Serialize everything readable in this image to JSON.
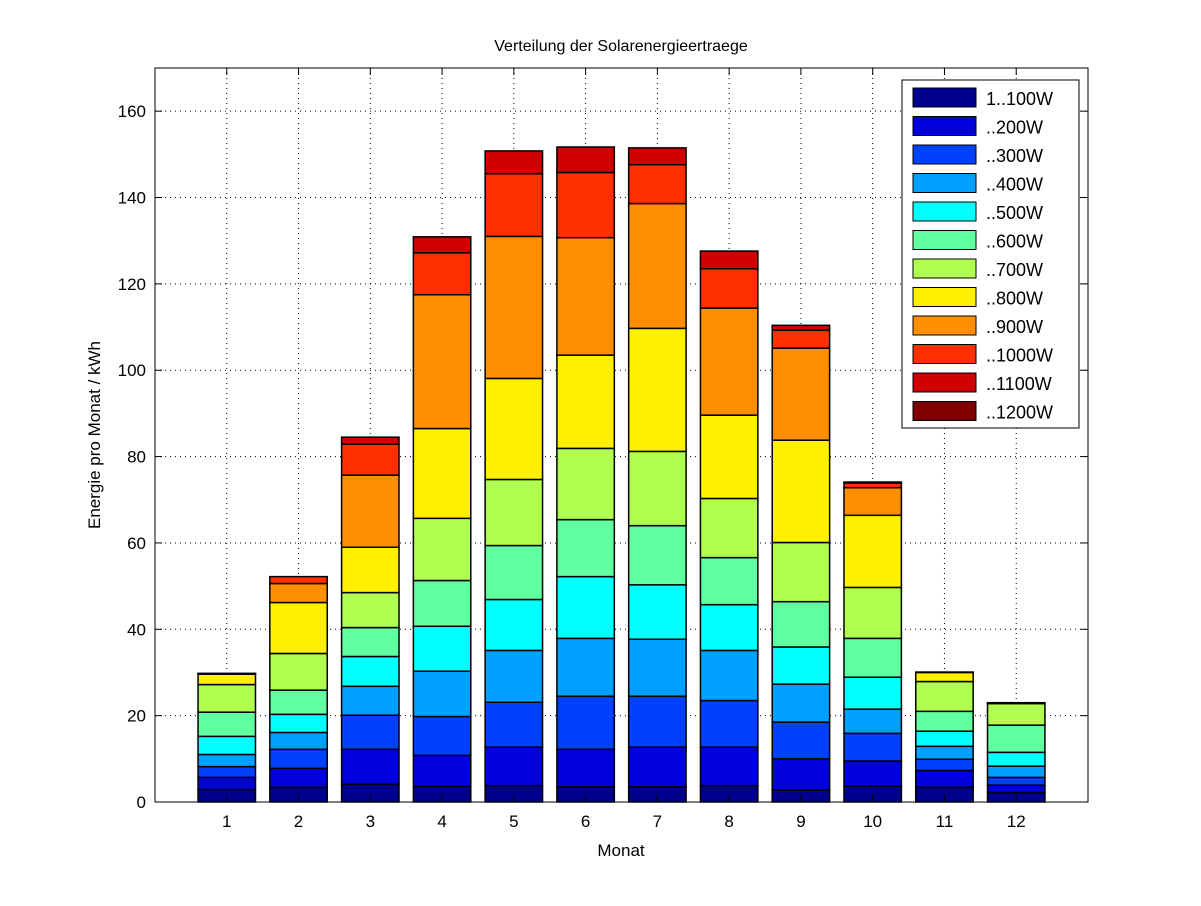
{
  "chart_data": {
    "type": "bar",
    "stacked": true,
    "title": "Verteilung der Solarenergieertraege",
    "xlabel": "Monat",
    "ylabel": "Energie pro Monat / kWh",
    "categories": [
      "1",
      "2",
      "3",
      "4",
      "5",
      "6",
      "7",
      "8",
      "9",
      "10",
      "11",
      "12"
    ],
    "xlim": [
      0,
      13
    ],
    "ylim": [
      0,
      170
    ],
    "yticks": [
      0,
      20,
      40,
      60,
      80,
      100,
      120,
      140,
      160
    ],
    "grid": true,
    "legend_position": "top-right",
    "series": [
      {
        "name": "1..100W",
        "color": "#00008F",
        "values": [
          2.9,
          3.4,
          4.1,
          3.6,
          3.8,
          3.5,
          3.5,
          3.8,
          2.8,
          3.7,
          3.4,
          2.2
        ]
      },
      {
        "name": "..200W",
        "color": "#0000DF",
        "values": [
          2.8,
          4.4,
          8.1,
          7.2,
          8.9,
          8.7,
          9.2,
          8.9,
          7.2,
          5.8,
          3.9,
          1.7
        ]
      },
      {
        "name": "..300W",
        "color": "#0040FF",
        "values": [
          2.5,
          4.4,
          7.9,
          9.0,
          10.4,
          12.3,
          11.8,
          10.8,
          8.5,
          6.4,
          2.6,
          1.8
        ]
      },
      {
        "name": "..400W",
        "color": "#00A0FF",
        "values": [
          2.8,
          3.9,
          6.7,
          10.5,
          12.0,
          13.4,
          13.2,
          11.6,
          8.8,
          5.6,
          3.0,
          2.6
        ]
      },
      {
        "name": "..500W",
        "color": "#00FFFF",
        "values": [
          4.2,
          4.2,
          6.9,
          10.4,
          11.8,
          14.3,
          12.6,
          10.6,
          8.6,
          7.4,
          3.5,
          3.2
        ]
      },
      {
        "name": "..600W",
        "color": "#60FF9F",
        "values": [
          5.6,
          5.6,
          6.7,
          10.6,
          12.5,
          13.2,
          13.7,
          10.9,
          10.5,
          9.0,
          4.6,
          6.3
        ]
      },
      {
        "name": "..700W",
        "color": "#B0FF50",
        "values": [
          6.4,
          8.5,
          8.1,
          14.4,
          15.3,
          16.5,
          17.2,
          13.7,
          13.7,
          11.8,
          6.9,
          5.0
        ]
      },
      {
        "name": "..800W",
        "color": "#FFEF00",
        "values": [
          2.4,
          11.8,
          10.5,
          20.8,
          23.4,
          21.6,
          28.5,
          19.3,
          23.7,
          16.7,
          2.1,
          0.2
        ]
      },
      {
        "name": "..900W",
        "color": "#FF8F00",
        "values": [
          0.1,
          4.4,
          16.7,
          31.0,
          32.9,
          27.2,
          28.9,
          24.8,
          21.3,
          6.4,
          0,
          0
        ]
      },
      {
        "name": "..1000W",
        "color": "#FF3000",
        "values": [
          0,
          1.6,
          7.2,
          9.7,
          14.5,
          15.1,
          9.0,
          9.1,
          4.2,
          1.1,
          0,
          0
        ]
      },
      {
        "name": "..1100W",
        "color": "#D00000",
        "values": [
          0.1,
          0,
          1.6,
          3.7,
          5.3,
          5.9,
          3.9,
          4.1,
          1.1,
          0.2,
          0.1,
          0
        ]
      },
      {
        "name": "..1200W",
        "color": "#800000",
        "values": [
          0,
          0,
          0,
          0,
          0,
          0,
          0,
          0,
          0,
          0,
          0,
          0
        ]
      }
    ]
  }
}
